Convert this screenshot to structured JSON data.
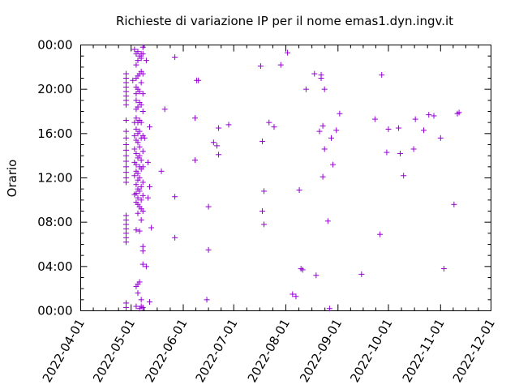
{
  "chart_data": {
    "type": "scatter",
    "title": "Richieste di variazione IP per il nome emas1.dyn.ingv.it",
    "xlabel": "",
    "ylabel": "Orario",
    "marker": "+",
    "color": "#9400d3",
    "grid": false,
    "legend": "none",
    "x_ticks": [
      "2022-04-01",
      "2022-05-01",
      "2022-06-01",
      "2022-07-01",
      "2022-08-01",
      "2022-09-01",
      "2022-10-01",
      "2022-11-01",
      "2022-12-01"
    ],
    "y_ticks": [
      "00:00",
      "04:00",
      "08:00",
      "12:00",
      "16:00",
      "20:00",
      "00:00"
    ],
    "xlim": [
      "2022-04-01",
      "2022-12-01"
    ],
    "ylim": [
      0,
      24
    ],
    "points": [
      [
        "2022-04-28",
        0.3
      ],
      [
        "2022-04-28",
        0.7
      ],
      [
        "2022-04-28",
        6.2
      ],
      [
        "2022-04-28",
        6.6
      ],
      [
        "2022-04-28",
        7.0
      ],
      [
        "2022-04-28",
        7.4
      ],
      [
        "2022-04-28",
        7.8
      ],
      [
        "2022-04-28",
        8.2
      ],
      [
        "2022-04-28",
        8.6
      ],
      [
        "2022-04-28",
        11.6
      ],
      [
        "2022-04-28",
        12.0
      ],
      [
        "2022-04-28",
        12.5
      ],
      [
        "2022-04-28",
        13.0
      ],
      [
        "2022-04-28",
        13.5
      ],
      [
        "2022-04-28",
        14.0
      ],
      [
        "2022-04-28",
        14.5
      ],
      [
        "2022-04-28",
        15.0
      ],
      [
        "2022-04-28",
        15.6
      ],
      [
        "2022-04-28",
        16.2
      ],
      [
        "2022-04-28",
        17.2
      ],
      [
        "2022-04-28",
        18.6
      ],
      [
        "2022-04-28",
        19.0
      ],
      [
        "2022-04-28",
        19.4
      ],
      [
        "2022-04-28",
        19.8
      ],
      [
        "2022-04-28",
        20.2
      ],
      [
        "2022-04-28",
        20.6
      ],
      [
        "2022-04-28",
        21.0
      ],
      [
        "2022-04-28",
        21.4
      ],
      [
        "2022-05-02",
        20.8
      ],
      [
        "2022-05-03",
        23.6
      ],
      [
        "2022-05-03",
        10.5
      ],
      [
        "2022-05-03",
        12.2
      ],
      [
        "2022-05-03",
        13.4
      ],
      [
        "2022-05-03",
        14.6
      ],
      [
        "2022-05-03",
        15.8
      ],
      [
        "2022-05-03",
        17.0
      ],
      [
        "2022-05-04",
        0.4
      ],
      [
        "2022-05-04",
        2.2
      ],
      [
        "2022-05-04",
        7.3
      ],
      [
        "2022-05-04",
        9.8
      ],
      [
        "2022-05-04",
        10.6
      ],
      [
        "2022-05-04",
        11.4
      ],
      [
        "2022-05-04",
        12.6
      ],
      [
        "2022-05-04",
        13.2
      ],
      [
        "2022-05-04",
        14.2
      ],
      [
        "2022-05-04",
        15.4
      ],
      [
        "2022-05-04",
        16.4
      ],
      [
        "2022-05-04",
        17.4
      ],
      [
        "2022-05-04",
        18.2
      ],
      [
        "2022-05-04",
        19.0
      ],
      [
        "2022-05-04",
        19.6
      ],
      [
        "2022-05-04",
        20.2
      ],
      [
        "2022-05-04",
        21.0
      ],
      [
        "2022-05-04",
        22.2
      ],
      [
        "2022-05-04",
        23.2
      ],
      [
        "2022-05-05",
        1.6
      ],
      [
        "2022-05-05",
        2.4
      ],
      [
        "2022-05-05",
        8.8
      ],
      [
        "2022-05-05",
        9.6
      ],
      [
        "2022-05-05",
        10.2
      ],
      [
        "2022-05-05",
        11.0
      ],
      [
        "2022-05-05",
        11.8
      ],
      [
        "2022-05-05",
        12.4
      ],
      [
        "2022-05-05",
        13.8
      ],
      [
        "2022-05-05",
        15.2
      ],
      [
        "2022-05-05",
        16.0
      ],
      [
        "2022-05-05",
        17.0
      ],
      [
        "2022-05-05",
        18.4
      ],
      [
        "2022-05-05",
        20.0
      ],
      [
        "2022-05-05",
        21.2
      ],
      [
        "2022-05-05",
        22.6
      ],
      [
        "2022-05-05",
        23.4
      ],
      [
        "2022-05-06",
        0.2
      ],
      [
        "2022-05-06",
        2.6
      ],
      [
        "2022-05-06",
        7.2
      ],
      [
        "2022-05-06",
        9.4
      ],
      [
        "2022-05-06",
        10.8
      ],
      [
        "2022-05-06",
        12.0
      ],
      [
        "2022-05-06",
        13.0
      ],
      [
        "2022-05-06",
        14.0
      ],
      [
        "2022-05-06",
        14.8
      ],
      [
        "2022-05-06",
        16.2
      ],
      [
        "2022-05-06",
        17.2
      ],
      [
        "2022-05-06",
        18.8
      ],
      [
        "2022-05-06",
        19.8
      ],
      [
        "2022-05-06",
        21.4
      ],
      [
        "2022-05-06",
        23.0
      ],
      [
        "2022-05-07",
        0.4
      ],
      [
        "2022-05-07",
        1.0
      ],
      [
        "2022-05-07",
        8.2
      ],
      [
        "2022-05-07",
        9.2
      ],
      [
        "2022-05-07",
        10.0
      ],
      [
        "2022-05-07",
        11.2
      ],
      [
        "2022-05-07",
        12.8
      ],
      [
        "2022-05-07",
        13.6
      ],
      [
        "2022-05-07",
        15.6
      ],
      [
        "2022-05-07",
        17.0
      ],
      [
        "2022-05-07",
        18.6
      ],
      [
        "2022-05-07",
        20.6
      ],
      [
        "2022-05-07",
        21.6
      ],
      [
        "2022-05-07",
        22.8
      ],
      [
        "2022-05-07",
        23.2
      ],
      [
        "2022-05-08",
        0.3
      ],
      [
        "2022-05-08",
        4.2
      ],
      [
        "2022-05-08",
        5.4
      ],
      [
        "2022-05-08",
        5.8
      ],
      [
        "2022-05-08",
        9.0
      ],
      [
        "2022-05-08",
        10.4
      ],
      [
        "2022-05-08",
        11.6
      ],
      [
        "2022-05-08",
        13.0
      ],
      [
        "2022-05-08",
        14.4
      ],
      [
        "2022-05-08",
        15.8
      ],
      [
        "2022-05-08",
        18.0
      ],
      [
        "2022-05-08",
        19.6
      ],
      [
        "2022-05-08",
        21.4
      ],
      [
        "2022-05-08",
        23.2
      ],
      [
        "2022-05-08",
        23.8
      ],
      [
        "2022-05-09",
        15.6
      ],
      [
        "2022-05-10",
        4.0
      ],
      [
        "2022-05-10",
        22.6
      ],
      [
        "2022-05-11",
        10.2
      ],
      [
        "2022-05-11",
        13.4
      ],
      [
        "2022-05-12",
        0.8
      ],
      [
        "2022-05-12",
        11.2
      ],
      [
        "2022-05-12",
        16.6
      ],
      [
        "2022-05-13",
        7.5
      ],
      [
        "2022-05-19",
        12.6
      ],
      [
        "2022-05-21",
        18.2
      ],
      [
        "2022-05-27",
        6.6
      ],
      [
        "2022-05-27",
        10.3
      ],
      [
        "2022-05-27",
        22.9
      ],
      [
        "2022-06-08",
        13.6
      ],
      [
        "2022-06-08",
        17.4
      ],
      [
        "2022-06-09",
        20.8
      ],
      [
        "2022-06-10",
        20.8
      ],
      [
        "2022-06-15",
        1.0
      ],
      [
        "2022-06-16",
        5.5
      ],
      [
        "2022-06-16",
        9.4
      ],
      [
        "2022-06-19",
        15.2
      ],
      [
        "2022-06-21",
        14.9
      ],
      [
        "2022-06-22",
        14.1
      ],
      [
        "2022-06-22",
        16.5
      ],
      [
        "2022-06-28",
        16.8
      ],
      [
        "2022-07-17",
        22.1
      ],
      [
        "2022-07-18",
        15.3
      ],
      [
        "2022-07-18",
        9.0
      ],
      [
        "2022-07-19",
        7.8
      ],
      [
        "2022-07-19",
        10.8
      ],
      [
        "2022-07-22",
        17.0
      ],
      [
        "2022-07-25",
        16.6
      ],
      [
        "2022-07-29",
        22.2
      ],
      [
        "2022-08-02",
        23.3
      ],
      [
        "2022-08-05",
        1.5
      ],
      [
        "2022-08-07",
        1.3
      ],
      [
        "2022-08-09",
        10.9
      ],
      [
        "2022-08-10",
        3.8
      ],
      [
        "2022-08-11",
        3.7
      ],
      [
        "2022-08-13",
        20.0
      ],
      [
        "2022-08-18",
        21.4
      ],
      [
        "2022-08-19",
        3.2
      ],
      [
        "2022-08-21",
        16.2
      ],
      [
        "2022-08-22",
        21.3
      ],
      [
        "2022-08-22",
        21.0
      ],
      [
        "2022-08-23",
        12.1
      ],
      [
        "2022-08-23",
        16.7
      ],
      [
        "2022-08-24",
        14.6
      ],
      [
        "2022-08-24",
        20.0
      ],
      [
        "2022-08-26",
        8.1
      ],
      [
        "2022-08-27",
        0.2
      ],
      [
        "2022-08-28",
        15.6
      ],
      [
        "2022-08-29",
        13.2
      ],
      [
        "2022-08-31",
        16.3
      ],
      [
        "2022-09-02",
        17.8
      ],
      [
        "2022-09-15",
        3.3
      ],
      [
        "2022-09-23",
        17.3
      ],
      [
        "2022-09-26",
        6.9
      ],
      [
        "2022-09-27",
        21.3
      ],
      [
        "2022-09-30",
        14.3
      ],
      [
        "2022-10-01",
        16.4
      ],
      [
        "2022-10-07",
        16.5
      ],
      [
        "2022-10-08",
        14.2
      ],
      [
        "2022-10-10",
        12.2
      ],
      [
        "2022-10-16",
        14.6
      ],
      [
        "2022-10-17",
        17.3
      ],
      [
        "2022-10-22",
        16.3
      ],
      [
        "2022-10-25",
        17.7
      ],
      [
        "2022-10-28",
        17.6
      ],
      [
        "2022-11-01",
        15.6
      ],
      [
        "2022-11-03",
        3.8
      ],
      [
        "2022-11-09",
        9.6
      ],
      [
        "2022-11-11",
        17.8
      ],
      [
        "2022-11-12",
        17.9
      ]
    ]
  }
}
